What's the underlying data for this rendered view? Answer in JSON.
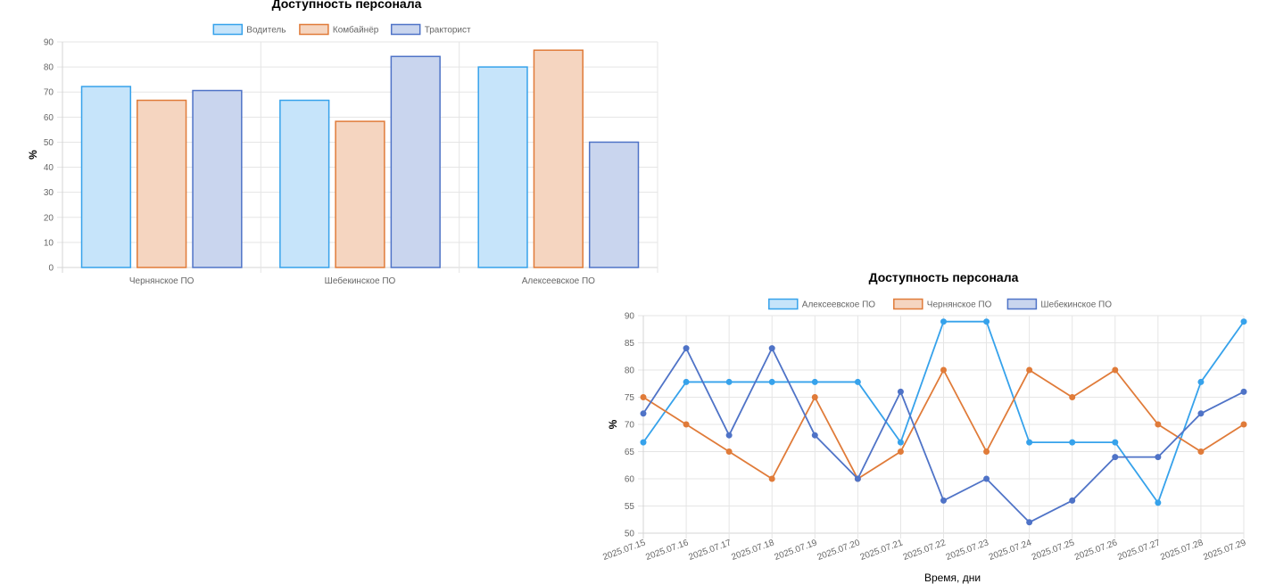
{
  "chart_data": [
    {
      "type": "bar",
      "title": "Доступность персонала",
      "ylabel": "%",
      "xlabel": "",
      "ylim": [
        0,
        90
      ],
      "yticks": [
        0,
        10,
        20,
        30,
        40,
        50,
        60,
        70,
        80,
        90
      ],
      "categories": [
        "Чернянское ПО",
        "Шебекинское ПО",
        "Алексеевское ПО"
      ],
      "legend_position": "top-center",
      "grid": true,
      "series": [
        {
          "name": "Водитель",
          "values": [
            72.2,
            66.7,
            80.0
          ],
          "color": "#36a2eb",
          "fill": "#c6e4fa"
        },
        {
          "name": "Комбайнёр",
          "values": [
            66.7,
            58.3,
            86.7
          ],
          "color": "#e07b39",
          "fill": "#f5d5c0"
        },
        {
          "name": "Тракторист",
          "values": [
            70.6,
            84.2,
            50.0
          ],
          "color": "#4f73c7",
          "fill": "#c9d5ee"
        }
      ]
    },
    {
      "type": "line",
      "title": "Доступность персонала",
      "ylabel": "%",
      "xlabel": "Время, дни",
      "ylim": [
        50,
        90
      ],
      "yticks": [
        50,
        55,
        60,
        65,
        70,
        75,
        80,
        85,
        90
      ],
      "x": [
        "2025.07.15",
        "2025.07.16",
        "2025.07.17",
        "2025.07.18",
        "2025.07.19",
        "2025.07.20",
        "2025.07.21",
        "2025.07.22",
        "2025.07.23",
        "2025.07.24",
        "2025.07.25",
        "2025.07.26",
        "2025.07.27",
        "2025.07.28",
        "2025.07.29"
      ],
      "legend_position": "top-center",
      "grid": true,
      "series": [
        {
          "name": "Алексеевское ПО",
          "values": [
            66.7,
            77.8,
            77.8,
            77.8,
            77.8,
            77.8,
            66.7,
            88.9,
            88.9,
            66.7,
            66.7,
            66.7,
            55.6,
            77.8,
            88.9
          ],
          "color": "#36a2eb",
          "fill": "#c6e4fa"
        },
        {
          "name": "Чернянское ПО",
          "values": [
            75,
            70,
            65,
            60,
            75,
            60,
            65,
            80,
            65,
            80,
            75,
            80,
            70,
            65,
            70
          ],
          "color": "#e07b39",
          "fill": "#f5d5c0"
        },
        {
          "name": "Шебекинское ПО",
          "values": [
            72,
            84,
            68,
            84,
            68,
            60,
            76,
            56,
            60,
            52,
            56,
            64,
            64,
            72,
            76
          ],
          "color": "#4f73c7",
          "fill": "#c9d5ee"
        }
      ]
    }
  ]
}
